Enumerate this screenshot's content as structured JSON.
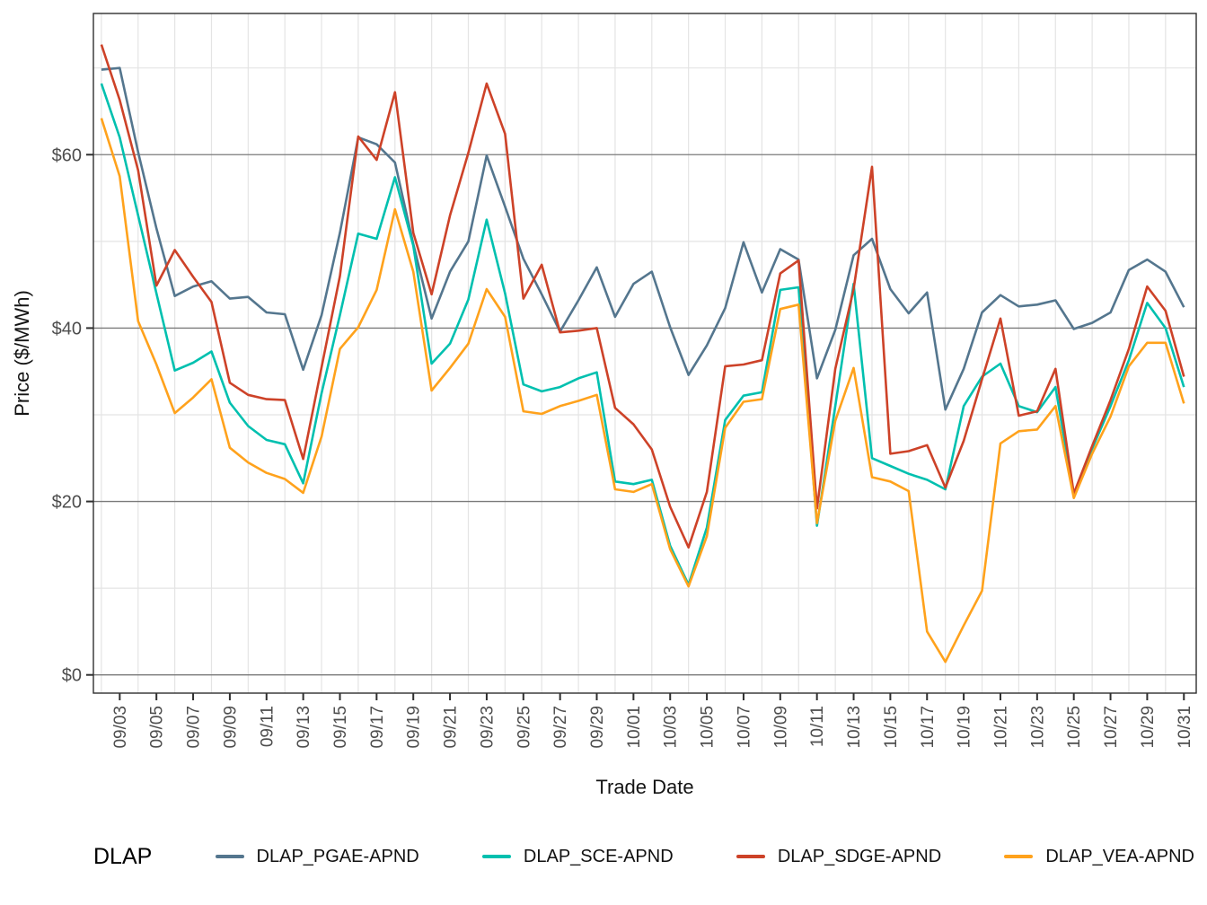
{
  "chart_data": {
    "type": "line",
    "title": "",
    "xlabel": "Trade Date",
    "ylabel": "Price ($/MWh)",
    "legend": {
      "title": "DLAP",
      "position": "bottom"
    },
    "grid": {
      "major_y": [
        0,
        20,
        40,
        60
      ],
      "minor_y": [
        10,
        30,
        50,
        70
      ],
      "vertical_every_2_days": true
    },
    "y_axis": {
      "tick_values": [
        0,
        20,
        40,
        60
      ],
      "tick_labels": [
        "$0",
        "$20",
        "$40",
        "$60"
      ],
      "ylim": [
        -2,
        78
      ]
    },
    "x_tick_labels": [
      "09/03",
      "09/05",
      "09/07",
      "09/09",
      "09/11",
      "09/13",
      "09/15",
      "09/17",
      "09/19",
      "09/21",
      "09/23",
      "09/25",
      "09/27",
      "09/29",
      "10/01",
      "10/03",
      "10/05",
      "10/07",
      "10/09",
      "10/11",
      "10/13",
      "10/15",
      "10/17",
      "10/19",
      "10/21",
      "10/23",
      "10/25",
      "10/27",
      "10/29",
      "10/31"
    ],
    "x": [
      "09/02",
      "09/03",
      "09/04",
      "09/05",
      "09/06",
      "09/07",
      "09/08",
      "09/09",
      "09/10",
      "09/11",
      "09/12",
      "09/13",
      "09/14",
      "09/15",
      "09/16",
      "09/17",
      "09/18",
      "09/19",
      "09/20",
      "09/21",
      "09/22",
      "09/23",
      "09/24",
      "09/25",
      "09/26",
      "09/27",
      "09/28",
      "09/29",
      "09/30",
      "10/01",
      "10/02",
      "10/03",
      "10/04",
      "10/05",
      "10/06",
      "10/07",
      "10/08",
      "10/09",
      "10/10",
      "10/11",
      "10/12",
      "10/13",
      "10/14",
      "10/15",
      "10/16",
      "10/17",
      "10/18",
      "10/19",
      "10/20",
      "10/21",
      "10/22",
      "10/23",
      "10/24",
      "10/25",
      "10/26",
      "10/27",
      "10/28",
      "10/29",
      "10/30",
      "10/31"
    ],
    "series": [
      {
        "name": "DLAP_PGAE-APND",
        "color": "#54768E",
        "values": [
          69.8,
          70.0,
          60.3,
          51.5,
          43.7,
          44.8,
          45.4,
          43.4,
          43.6,
          41.8,
          41.6,
          35.2,
          41.5,
          51.0,
          62.0,
          61.2,
          59.1,
          49.7,
          41.1,
          46.5,
          50.0,
          59.9,
          54.0,
          48.0,
          43.9,
          39.6,
          43.2,
          47.0,
          41.3,
          45.1,
          46.5,
          40.1,
          34.6,
          38.0,
          42.3,
          49.9,
          44.1,
          49.1,
          47.9,
          34.2,
          39.8,
          48.4,
          50.3,
          44.5,
          41.7,
          44.1,
          30.6,
          35.3,
          41.8,
          43.8,
          42.5,
          42.7,
          43.2,
          39.9,
          40.6,
          41.8,
          46.7,
          47.9,
          46.5,
          42.4
        ]
      },
      {
        "name": "DLAP_SCE-APND",
        "color": "#00C0AF",
        "values": [
          68.2,
          62.0,
          53.0,
          44.0,
          35.1,
          36.0,
          37.3,
          31.4,
          28.7,
          27.1,
          26.6,
          22.1,
          32.5,
          41.5,
          50.9,
          50.3,
          57.4,
          49.5,
          35.9,
          38.2,
          43.3,
          52.5,
          44.0,
          33.5,
          32.7,
          33.2,
          34.2,
          34.9,
          22.3,
          22.0,
          22.5,
          14.9,
          10.4,
          17.0,
          29.4,
          32.2,
          32.6,
          44.4,
          44.7,
          17.2,
          31.0,
          45.1,
          25.0,
          24.1,
          23.2,
          22.5,
          21.4,
          31.0,
          34.4,
          35.9,
          31.0,
          30.3,
          33.2,
          20.7,
          26.1,
          31.0,
          36.3,
          42.9,
          40.0,
          33.2
        ]
      },
      {
        "name": "DLAP_SDGE-APND",
        "color": "#CD4228",
        "values": [
          72.7,
          66.3,
          58.2,
          44.9,
          49.0,
          45.9,
          43.0,
          33.7,
          32.3,
          31.8,
          31.7,
          24.9,
          35.5,
          46.0,
          62.1,
          59.4,
          67.2,
          51.0,
          43.9,
          53.0,
          60.2,
          68.2,
          62.4,
          43.4,
          47.3,
          39.5,
          39.7,
          40.0,
          30.8,
          28.9,
          26.0,
          19.4,
          14.7,
          21.1,
          35.6,
          35.8,
          36.3,
          46.3,
          47.8,
          19.2,
          35.3,
          44.5,
          58.6,
          25.5,
          25.8,
          26.5,
          21.6,
          27.0,
          34.1,
          41.1,
          29.9,
          30.4,
          35.3,
          20.9,
          26.4,
          31.7,
          37.6,
          44.8,
          42.0,
          34.4
        ]
      },
      {
        "name": "DLAP_VEA-APND",
        "color": "#FFA21C",
        "values": [
          64.2,
          57.5,
          40.8,
          35.8,
          30.2,
          32.0,
          34.1,
          26.2,
          24.5,
          23.3,
          22.6,
          21.0,
          27.5,
          37.6,
          40.1,
          44.4,
          53.7,
          46.5,
          32.8,
          35.4,
          38.2,
          44.5,
          41.3,
          30.4,
          30.1,
          31.0,
          31.6,
          32.3,
          21.4,
          21.1,
          22.0,
          14.5,
          10.2,
          16.0,
          28.5,
          31.5,
          31.8,
          42.2,
          42.7,
          17.5,
          29.3,
          35.4,
          22.8,
          22.3,
          21.2,
          5.0,
          1.5,
          5.7,
          9.7,
          26.7,
          28.1,
          28.3,
          31.0,
          20.4,
          25.5,
          29.8,
          35.6,
          38.3,
          38.3,
          31.3
        ]
      }
    ]
  }
}
